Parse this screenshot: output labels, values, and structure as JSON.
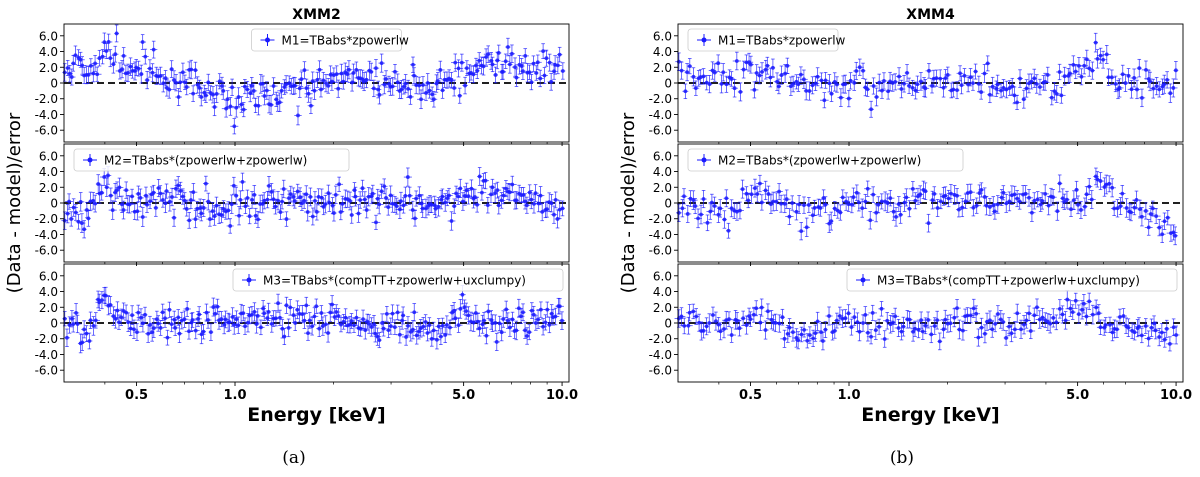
{
  "figure": {
    "captions": [
      "(a)",
      "(b)"
    ],
    "ylabel": "(Data - model)/error",
    "xlabel": "Energy [keV]"
  },
  "colors": {
    "points": "#1a1aff",
    "zero_line": "#000000",
    "frame": "#000000"
  },
  "chart_data": [
    {
      "type": "scatter",
      "title": "XMM2",
      "xlabel": "Energy [keV]",
      "ylabel": "(Data - model)/error",
      "xscale": "log",
      "xlim": [
        0.3,
        10.5
      ],
      "xticks": [
        0.5,
        1.0,
        5.0,
        10.0
      ],
      "xticklabels": [
        "0.5",
        "1.0",
        "5.0",
        "10.0"
      ],
      "yticks": [
        -6,
        -4,
        -2,
        0,
        2,
        4,
        6
      ],
      "yticklabels": [
        "-6.0",
        "-4.0",
        "-2.0",
        "0",
        "2.0",
        "4.0",
        "6.0"
      ],
      "panels": [
        {
          "model": "M1=TBabs*zpowerlw",
          "ylim": [
            -7.5,
            7.5
          ],
          "legend_loc": "upper center",
          "trend": [
            [
              0.3,
              2.5
            ],
            [
              0.38,
              2.0
            ],
            [
              0.4,
              4.5
            ],
            [
              0.45,
              2.5
            ],
            [
              0.55,
              1.2
            ],
            [
              0.65,
              -0.3
            ],
            [
              0.85,
              -1.0
            ],
            [
              1.0,
              -2.5
            ],
            [
              1.3,
              -1.5
            ],
            [
              2.0,
              0.3
            ],
            [
              3.0,
              0.5
            ],
            [
              4.0,
              -1.0
            ],
            [
              5.0,
              0.8
            ],
            [
              6.0,
              3.0
            ],
            [
              8.0,
              2.0
            ],
            [
              10.0,
              1.8
            ]
          ],
          "noise": 1.2,
          "point_count": 230,
          "seed": 11
        },
        {
          "model": "M2=TBabs*(zpowerlw+zpowerlw)",
          "ylim": [
            -7.5,
            7.5
          ],
          "legend_loc": "upper left",
          "trend": [
            [
              0.3,
              -0.8
            ],
            [
              0.35,
              -1.5
            ],
            [
              0.4,
              3.0
            ],
            [
              0.45,
              0.5
            ],
            [
              0.6,
              0.5
            ],
            [
              0.8,
              -1.0
            ],
            [
              1.0,
              0.0
            ],
            [
              2.0,
              0.3
            ],
            [
              3.0,
              0.3
            ],
            [
              4.0,
              -0.8
            ],
            [
              5.0,
              0.8
            ],
            [
              6.0,
              2.0
            ],
            [
              8.0,
              0.5
            ],
            [
              10.0,
              -0.5
            ]
          ],
          "noise": 1.1,
          "point_count": 230,
          "seed": 23
        },
        {
          "model": "M3=TBabs*(compTT+zpowerlw+uxclumpy)",
          "ylim": [
            -7.5,
            7.5
          ],
          "legend_loc": "upper right",
          "trend": [
            [
              0.3,
              0.0
            ],
            [
              0.35,
              -1.5
            ],
            [
              0.4,
              2.5
            ],
            [
              0.45,
              0.5
            ],
            [
              0.6,
              0.0
            ],
            [
              0.8,
              -0.5
            ],
            [
              1.0,
              0.2
            ],
            [
              2.0,
              0.3
            ],
            [
              3.0,
              0.0
            ],
            [
              4.0,
              -1.0
            ],
            [
              5.0,
              1.5
            ],
            [
              6.0,
              -1.0
            ],
            [
              8.0,
              0.3
            ],
            [
              10.0,
              0.5
            ]
          ],
          "noise": 1.1,
          "point_count": 230,
          "seed": 37
        }
      ]
    },
    {
      "type": "scatter",
      "title": "XMM4",
      "xlabel": "Energy [keV]",
      "ylabel": "(Data - model)/error",
      "xscale": "log",
      "xlim": [
        0.3,
        10.5
      ],
      "xticks": [
        0.5,
        1.0,
        5.0,
        10.0
      ],
      "xticklabels": [
        "0.5",
        "1.0",
        "5.0",
        "10.0"
      ],
      "yticks": [
        -6,
        -4,
        -2,
        0,
        2,
        4,
        6
      ],
      "yticklabels": [
        "-6.0",
        "-4.0",
        "-2.0",
        "0",
        "2.0",
        "4.0",
        "6.0"
      ],
      "panels": [
        {
          "model": "M1=TBabs*zpowerlw",
          "ylim": [
            -7.5,
            7.5
          ],
          "legend_loc": "upper left",
          "trend": [
            [
              0.3,
              1.0
            ],
            [
              0.45,
              0.5
            ],
            [
              0.5,
              2.0
            ],
            [
              0.6,
              0.5
            ],
            [
              0.75,
              -0.5
            ],
            [
              1.0,
              -0.5
            ],
            [
              1.5,
              -0.5
            ],
            [
              2.5,
              0.0
            ],
            [
              3.2,
              -1.0
            ],
            [
              4.0,
              0.5
            ],
            [
              5.0,
              1.0
            ],
            [
              6.0,
              3.5
            ],
            [
              6.5,
              0.5
            ],
            [
              8.0,
              0.0
            ],
            [
              10.0,
              -0.5
            ]
          ],
          "noise": 1.0,
          "point_count": 180,
          "seed": 53
        },
        {
          "model": "M2=TBabs*(zpowerlw+zpowerlw)",
          "ylim": [
            -7.5,
            7.5
          ],
          "legend_loc": "upper left",
          "trend": [
            [
              0.3,
              -0.5
            ],
            [
              0.45,
              -1.0
            ],
            [
              0.5,
              1.5
            ],
            [
              0.6,
              0.5
            ],
            [
              0.75,
              -1.5
            ],
            [
              1.0,
              0.0
            ],
            [
              1.5,
              0.0
            ],
            [
              2.5,
              0.5
            ],
            [
              4.0,
              0.0
            ],
            [
              5.0,
              1.0
            ],
            [
              6.0,
              3.0
            ],
            [
              6.5,
              0.5
            ],
            [
              8.0,
              -1.5
            ],
            [
              10.0,
              -3.0
            ]
          ],
          "noise": 1.0,
          "point_count": 180,
          "seed": 71
        },
        {
          "model": "M3=TBabs*(compTT+zpowerlw+uxclumpy)",
          "ylim": [
            -7.5,
            7.5
          ],
          "legend_loc": "upper right",
          "trend": [
            [
              0.3,
              0.5
            ],
            [
              0.45,
              0.0
            ],
            [
              0.5,
              1.0
            ],
            [
              0.6,
              0.0
            ],
            [
              0.75,
              -1.5
            ],
            [
              1.0,
              0.0
            ],
            [
              2.0,
              0.0
            ],
            [
              3.0,
              -0.3
            ],
            [
              4.0,
              0.5
            ],
            [
              5.0,
              2.0
            ],
            [
              6.0,
              0.0
            ],
            [
              8.0,
              -1.0
            ],
            [
              10.0,
              -1.5
            ]
          ],
          "noise": 1.0,
          "point_count": 180,
          "seed": 89
        }
      ]
    }
  ]
}
